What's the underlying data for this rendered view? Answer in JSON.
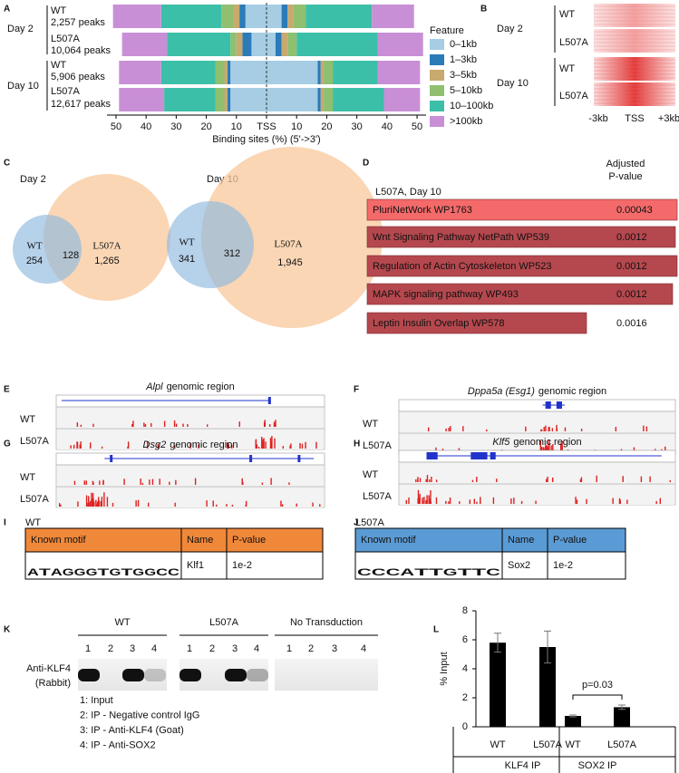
{
  "panel_letters": [
    "A",
    "B",
    "C",
    "D",
    "E",
    "F",
    "G",
    "H",
    "I",
    "J",
    "K",
    "L"
  ],
  "chart_data": [
    {
      "type": "stacked_bar_tss",
      "xlabel": "Binding sites (%) (5'->3')",
      "legend_title": "Feature",
      "groups": [
        "Day 2",
        "Day 10"
      ],
      "categories": [
        "WT",
        "L507A",
        "WT",
        "L507A"
      ],
      "peaks": [
        "2,257 peaks",
        "10,064 peaks",
        "5,906 peaks",
        "12,617 peaks"
      ],
      "xlim": [
        -53,
        53
      ],
      "xticks": [
        {
          "value": -50,
          "label": "50"
        },
        {
          "value": -40,
          "label": "40"
        },
        {
          "value": -30,
          "label": "30"
        },
        {
          "value": -20,
          "label": "20"
        },
        {
          "value": -10,
          "label": "10"
        },
        {
          "value": 0,
          "label": "TSS"
        },
        10,
        20,
        30,
        40,
        50
      ],
      "series": [
        {
          "name": "0–1kb",
          "color": "#a6cde3",
          "upstream": [
            7,
            5,
            12,
            12
          ],
          "downstream": [
            5,
            3,
            17,
            17
          ]
        },
        {
          "name": "1–3kb",
          "color": "#2b7bb9",
          "upstream": [
            2,
            3,
            1,
            1
          ],
          "downstream": [
            2,
            2,
            1,
            1
          ]
        },
        {
          "name": "3–5kb",
          "color": "#c8a96e",
          "upstream": [
            2,
            2,
            1,
            1
          ],
          "downstream": [
            2,
            2,
            1,
            1
          ]
        },
        {
          "name": "5–10kb",
          "color": "#8fbf6f",
          "upstream": [
            4,
            2,
            3,
            3
          ],
          "downstream": [
            4,
            3,
            3,
            3
          ]
        },
        {
          "name": "10–100kb",
          "color": "#3cbfa8",
          "upstream": [
            20,
            21,
            18,
            17
          ],
          "downstream": [
            22,
            27,
            15,
            17
          ]
        },
        {
          "name": ">100kb",
          "color": "#c98fd6",
          "upstream": [
            16,
            15,
            14,
            15
          ],
          "downstream": [
            14,
            15,
            14,
            12
          ]
        }
      ]
    },
    {
      "type": "bar_error",
      "ylabel": "% Input",
      "ylim": [
        0,
        8
      ],
      "yticks": [
        0,
        2,
        4,
        6,
        8
      ],
      "categories": [
        "WT",
        "L507A",
        "WT",
        "L507A"
      ],
      "groups": [
        "KLF4 IP",
        "SOX2 IP"
      ],
      "values": [
        5.8,
        5.5,
        0.75,
        1.35
      ],
      "errors": [
        0.65,
        1.1,
        0.06,
        0.15
      ],
      "color": "#000000",
      "annotation": "p=0.03"
    }
  ],
  "heatmap": {
    "groups": [
      "Day 2",
      "Day 10"
    ],
    "rows": [
      "WT",
      "L507A",
      "WT",
      "L507A"
    ],
    "xlabels": [
      "-3kb",
      "TSS",
      "+3kb"
    ]
  },
  "venn": [
    {
      "title": "Day 2",
      "left": "WT",
      "left_only": "254",
      "overlap": "128",
      "right": "L507A",
      "right_only": "1,265"
    },
    {
      "title": "Day 10",
      "left": "WT",
      "left_only": "341",
      "overlap": "312",
      "right": "L507A",
      "right_only": "1,945"
    }
  ],
  "enrichment": {
    "title": "L507A, Day 10",
    "column": [
      "Adjusted",
      "P-value"
    ],
    "rows": [
      {
        "term": "PluriNetWork WP1763",
        "p_value": "0.00043"
      },
      {
        "term": "Wnt Signaling Pathway NetPath WP539",
        "p_value": "0.0012"
      },
      {
        "term": "Regulation of Actin Cytoskeleton WP523",
        "p_value": "0.0012"
      },
      {
        "term": "MAPK signaling pathway WP493",
        "p_value": "0.0012"
      },
      {
        "term": "Leptin Insulin Overlap WP578",
        "p_value": "0.0016"
      }
    ]
  },
  "tracks": [
    {
      "gene": "Alpl",
      "suffix": "genomic region",
      "labels": [
        "WT",
        "L507A"
      ]
    },
    {
      "gene": "Dppa5a (Esg1)",
      "suffix": "genomic region",
      "labels": [
        "WT",
        "L507A"
      ]
    },
    {
      "gene": "Dsg2",
      "suffix": "genomic region",
      "labels": [
        "WT",
        "L507A"
      ]
    },
    {
      "gene": "Klf5",
      "suffix": "genomic region",
      "labels": [
        "WT",
        "L507A"
      ]
    }
  ],
  "motifs": [
    {
      "label": "WT",
      "header": [
        "Known motif",
        "Name",
        "P-value"
      ],
      "logo": [
        "A",
        "T",
        "A",
        "G",
        "G",
        "G",
        "T",
        "G",
        "T",
        "G",
        "G",
        "C",
        "C"
      ],
      "name": "Klf1",
      "p_value": "1e-2"
    },
    {
      "label": "L507A",
      "header": [
        "Known motif",
        "Name",
        "P-value"
      ],
      "logo": [
        "C",
        "C",
        "C",
        "A",
        "T",
        "T",
        "G",
        "T",
        "T",
        "C"
      ],
      "name": "Sox2",
      "p_value": "1e-2"
    }
  ],
  "blot": {
    "groups": [
      "WT",
      "L507A",
      "No Transduction"
    ],
    "lanes": [
      "1",
      "2",
      "3",
      "4"
    ],
    "antibody": [
      "Anti-KLF4",
      "(Rabbit)"
    ],
    "legend": [
      "1: Input",
      "2: IP - Negative control IgG",
      "3: IP - Anti-KLF4 (Goat)",
      "4: IP - Anti-SOX2"
    ]
  }
}
